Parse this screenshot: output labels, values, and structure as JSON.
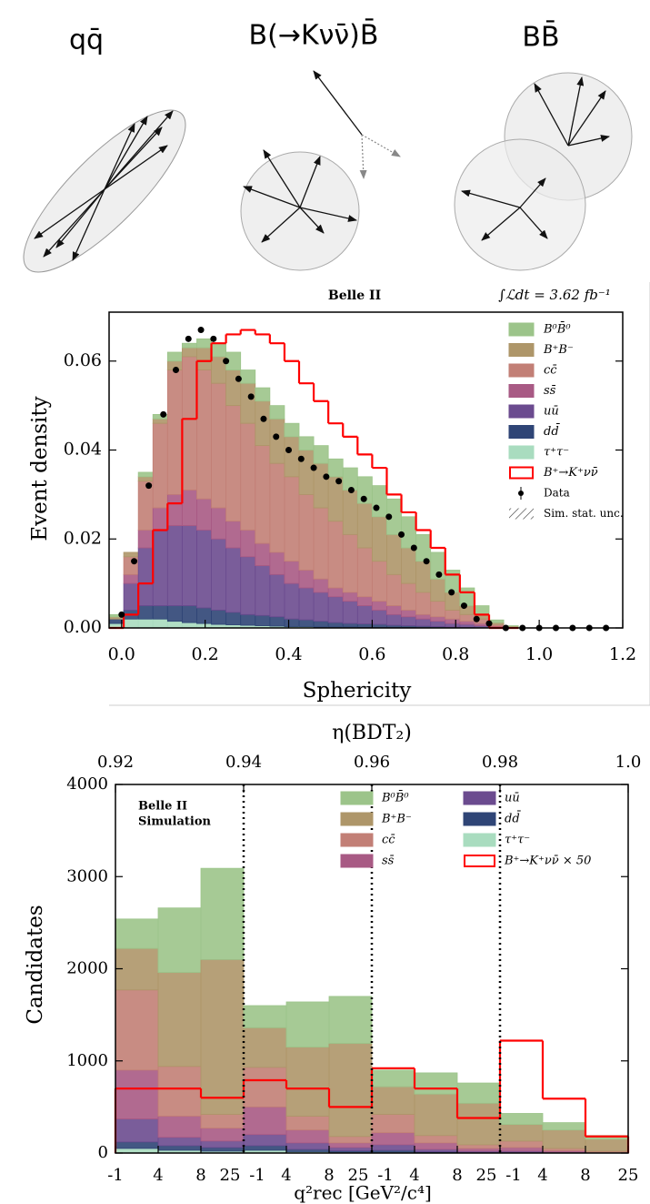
{
  "diagram": {
    "panels": [
      {
        "label": "qq̄"
      },
      {
        "label": "B(→Kνν̄)B̄"
      },
      {
        "label": "BB̄"
      }
    ]
  },
  "chart_data": [
    {
      "type": "histogram",
      "title": "Belle II",
      "annotation": "∫ℒdt = 3.62 fb⁻¹",
      "xlabel": "Sphericity",
      "ylabel": "Event density",
      "xlim": [
        -0.03,
        1.2
      ],
      "ylim": [
        0,
        0.071
      ],
      "xticks": [
        {
          "value": 0,
          "label": "0.0"
        },
        0.2,
        0.4,
        0.6,
        0.8,
        {
          "value": 1,
          "label": "1.0"
        },
        1.2
      ],
      "yticks": [
        {
          "value": 0,
          "label": "0.00"
        },
        0.02,
        0.04,
        0.06
      ],
      "bins": [
        -0.03,
        0.005,
        0.04,
        0.075,
        0.11,
        0.145,
        0.18,
        0.215,
        0.25,
        0.285,
        0.32,
        0.355,
        0.39,
        0.425,
        0.46,
        0.495,
        0.53,
        0.565,
        0.6,
        0.635,
        0.67,
        0.705,
        0.74,
        0.775,
        0.81,
        0.845,
        0.88,
        0.915,
        0.95
      ],
      "series": [
        {
          "name": "B⁰B̄⁰",
          "color": "#9cc48a",
          "values": [
            0.0005,
            0,
            0.001,
            0.001,
            0.002,
            0.001,
            0.002,
            0.003,
            0.004,
            0.003,
            0.003,
            0.003,
            0.003,
            0.003,
            0.004,
            0.004,
            0.005,
            0.006,
            0.007,
            0.008,
            0.007,
            0.006,
            0.006,
            0.005,
            0.004,
            0.002,
            0.0006,
            0.0002
          ]
        },
        {
          "name": "B⁺B⁻",
          "color": "#ae9669",
          "values": [
            0.0005,
            0.001,
            0.001,
            0.001,
            0.002,
            0.002,
            0.005,
            0.006,
            0.008,
            0.009,
            0.01,
            0.01,
            0.009,
            0.01,
            0.01,
            0.01,
            0.01,
            0.01,
            0.01,
            0.009,
            0.008,
            0.007,
            0.005,
            0.004,
            0.002,
            0.001,
            0.0004,
            0.0001
          ]
        },
        {
          "name": "cc̄",
          "color": "#c27f76",
          "values": [
            0,
            0.004,
            0.011,
            0.019,
            0.028,
            0.03,
            0.029,
            0.028,
            0.026,
            0.024,
            0.022,
            0.02,
            0.019,
            0.017,
            0.016,
            0.015,
            0.013,
            0.011,
            0.009,
            0.007,
            0.006,
            0.005,
            0.0035,
            0.002,
            0.0015,
            0.001,
            0.0004,
            0.0001
          ]
        },
        {
          "name": "ss̄",
          "color": "#a85a84",
          "values": [
            0,
            0.002,
            0.004,
            0.005,
            0.007,
            0.008,
            0.007,
            0.007,
            0.006,
            0.006,
            0.005,
            0.005,
            0.005,
            0.004,
            0.003,
            0.002,
            0.002,
            0.002,
            0.002,
            0.002,
            0.0015,
            0.001,
            0.001,
            0.001,
            0.0007,
            0.0005,
            0.0002,
            0.0001
          ]
        },
        {
          "name": "uū",
          "color": "#6b4b8f",
          "values": [
            0,
            0.006,
            0.013,
            0.017,
            0.018,
            0.018,
            0.0175,
            0.016,
            0.0145,
            0.013,
            0.0112,
            0.0095,
            0.008,
            0.0072,
            0.0065,
            0.0058,
            0.005,
            0.0041,
            0.0032,
            0.0024,
            0.002,
            0.0016,
            0.0012,
            0.0008,
            0.0007,
            0.0005,
            0.0002,
            0
          ]
        },
        {
          "name": "dd̄",
          "color": "#2f4576",
          "values": [
            0.001,
            0.002,
            0.003,
            0.003,
            0.0035,
            0.0038,
            0.0035,
            0.0032,
            0.0028,
            0.0024,
            0.0023,
            0.0021,
            0.0017,
            0.0015,
            0.0013,
            0.001,
            0.0008,
            0.0008,
            0.0007,
            0.0005,
            0.0004,
            0.0004,
            0.0003,
            0.0002,
            0.0001,
            0,
            0,
            0
          ]
        },
        {
          "name": "τ⁺τ⁻",
          "color": "#a9dcbf",
          "values": [
            0.001,
            0.002,
            0.002,
            0.002,
            0.0015,
            0.0012,
            0.001,
            0.0008,
            0.0007,
            0.0006,
            0.0005,
            0.0004,
            0.0003,
            0.0003,
            0.0002,
            0.0002,
            0.0002,
            0.0001,
            0.0001,
            0.0001,
            0.0001,
            0,
            0,
            0,
            0,
            0,
            0,
            0
          ]
        }
      ],
      "signal": {
        "name": "B⁺→K⁺νν̄",
        "color": "#ff0000",
        "values": [
          0,
          0.003,
          0.01,
          0.022,
          0.028,
          0.047,
          0.06,
          0.064,
          0.066,
          0.067,
          0.066,
          0.064,
          0.06,
          0.055,
          0.051,
          0.046,
          0.043,
          0.039,
          0.036,
          0.03,
          0.026,
          0.022,
          0.018,
          0.012,
          0.008,
          0.003,
          0,
          0
        ]
      },
      "data": {
        "name": "Data",
        "color": "#000000",
        "x": [
          0,
          0.03,
          0.065,
          0.1,
          0.13,
          0.16,
          0.19,
          0.22,
          0.25,
          0.28,
          0.31,
          0.34,
          0.37,
          0.4,
          0.43,
          0.46,
          0.49,
          0.52,
          0.55,
          0.58,
          0.61,
          0.64,
          0.67,
          0.7,
          0.73,
          0.76,
          0.79,
          0.82,
          0.85,
          0.88,
          0.92,
          0.96,
          1,
          1.04,
          1.08,
          1.12,
          1.16
        ],
        "values": [
          0.003,
          0.015,
          0.032,
          0.048,
          0.058,
          0.065,
          0.067,
          0.065,
          0.06,
          0.056,
          0.052,
          0.047,
          0.043,
          0.04,
          0.038,
          0.036,
          0.034,
          0.033,
          0.031,
          0.029,
          0.027,
          0.025,
          0.021,
          0.018,
          0.015,
          0.012,
          0.008,
          0.005,
          0.002,
          0.001,
          0,
          0,
          0,
          0,
          0,
          0,
          0
        ]
      },
      "uncertainty_label": "Sim. stat. unc."
    },
    {
      "type": "histogram",
      "annotations": [
        "Belle II",
        "Simulation"
      ],
      "xlabel": "η(BDT₂)",
      "q2_label": "q²rec [GeV²/c⁴]",
      "ylabel": "Candidates",
      "xlim": [
        0.92,
        1.0
      ],
      "ylim": [
        0,
        4000
      ],
      "xticks": [
        0.92,
        0.94,
        0.96,
        0.98,
        {
          "value": 1,
          "label": "1.0"
        }
      ],
      "yticks": [
        0,
        1000,
        2000,
        3000,
        4000
      ],
      "q2_ticks": [
        -1,
        4,
        8,
        25
      ],
      "series": [
        {
          "name": "B⁰B̄⁰",
          "color": "#9cc48a",
          "values": [
            320,
            700,
            990,
            240,
            490,
            510,
            180,
            230,
            220,
            120,
            80,
            40
          ]
        },
        {
          "name": "B⁺B⁻",
          "color": "#ae9669",
          "values": [
            450,
            1020,
            1680,
            430,
            750,
            1010,
            300,
            450,
            450,
            180,
            200,
            130
          ]
        },
        {
          "name": "cc̄",
          "color": "#c27f76",
          "values": [
            870,
            540,
            150,
            430,
            150,
            70,
            200,
            80,
            40,
            70,
            25,
            10
          ]
        },
        {
          "name": "ss̄",
          "color": "#a85a84",
          "values": [
            530,
            230,
            140,
            300,
            140,
            50,
            130,
            70,
            30,
            40,
            15,
            5
          ]
        },
        {
          "name": "uū",
          "color": "#6b4b8f",
          "values": [
            250,
            90,
            70,
            120,
            70,
            35,
            60,
            25,
            12,
            12,
            6,
            3
          ]
        },
        {
          "name": "dd̄",
          "color": "#2f4576",
          "values": [
            70,
            50,
            40,
            50,
            25,
            15,
            20,
            10,
            5,
            5,
            3,
            1
          ]
        },
        {
          "name": "τ⁺τ⁻",
          "color": "#a9dcbf",
          "values": [
            50,
            30,
            20,
            30,
            15,
            10,
            10,
            5,
            3,
            3,
            1,
            1
          ]
        }
      ],
      "signal": {
        "name": "B⁺→K⁺νν̄ × 50",
        "color": "#ff0000",
        "values": [
          700,
          700,
          600,
          790,
          700,
          500,
          920,
          700,
          380,
          1220,
          590,
          180
        ]
      }
    }
  ]
}
